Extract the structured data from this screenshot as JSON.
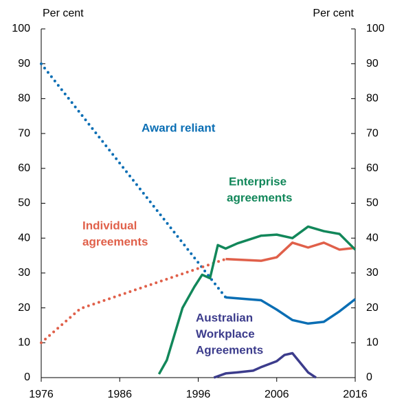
{
  "chart_data": {
    "type": "line",
    "y_label": "Per cent",
    "y2_label": "Per cent",
    "xlim": [
      1976,
      2016
    ],
    "xticks": [
      1976,
      1986,
      1996,
      2006,
      2016
    ],
    "ylim": [
      0,
      100
    ],
    "yticks": [
      0,
      10,
      20,
      30,
      40,
      50,
      60,
      70,
      80,
      90,
      100
    ],
    "y2lim": [
      0,
      100
    ],
    "y2ticks": [
      0,
      10,
      20,
      30,
      40,
      50,
      60,
      70,
      80,
      90,
      100
    ],
    "series": [
      {
        "color": "#0a6eb4",
        "style": "dotted",
        "x": [
          1976,
          1999.5
        ],
        "values": [
          90,
          23
        ]
      },
      {
        "color": "#0a6eb4",
        "style": "solid",
        "x": [
          1999.5,
          2004,
          2006,
          2008,
          2010,
          2012,
          2014,
          2016
        ],
        "values": [
          23,
          22.2,
          19.5,
          16.5,
          15.5,
          16,
          19,
          22.5
        ]
      },
      {
        "color": "#e0604a",
        "style": "dotted",
        "x": [
          1976,
          1981,
          1999.5
        ],
        "values": [
          10,
          19.8,
          34
        ]
      },
      {
        "color": "#e0604a",
        "style": "solid",
        "x": [
          1999.5,
          2004,
          2006,
          2008,
          2010,
          2012,
          2014,
          2016
        ],
        "values": [
          34,
          33.5,
          34.5,
          38.7,
          37.3,
          38.7,
          36.7,
          37.2
        ]
      },
      {
        "color": "#12875a",
        "style": "solid",
        "x": [
          1991,
          1992,
          1994,
          1995.5,
          1996.5,
          1997.5,
          1998.5,
          1999.5,
          2001,
          2004,
          2006,
          2008,
          2010,
          2012,
          2014,
          2016
        ],
        "values": [
          1,
          5,
          20,
          26,
          29.5,
          28.5,
          38,
          37,
          38.5,
          40.7,
          41,
          40,
          43.3,
          42,
          41.2,
          36.7
        ]
      },
      {
        "color": "#3c3c8c",
        "style": "solid",
        "x": [
          1998,
          1999.5,
          2001,
          2003,
          2004,
          2006,
          2007,
          2008,
          2010,
          2011
        ],
        "values": [
          0,
          1.2,
          1.5,
          2,
          3,
          4.7,
          6.5,
          7,
          1.5,
          0
        ]
      }
    ],
    "annotations": [
      {
        "lines": [
          "Award reliant"
        ],
        "color": "#0a6eb4"
      },
      {
        "lines": [
          "Enterprise",
          "agreements"
        ],
        "color": "#12875a"
      },
      {
        "lines": [
          "Individual",
          "agreements"
        ],
        "color": "#e0604a"
      },
      {
        "lines": [
          "Australian",
          "Workplace",
          "Agreements"
        ],
        "color": "#3c3c8c"
      }
    ]
  }
}
